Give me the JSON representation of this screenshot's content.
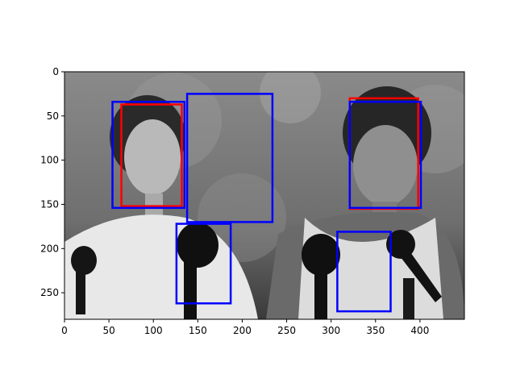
{
  "chart_data": {
    "type": "image-with-bounding-boxes",
    "title": "",
    "xlabel": "",
    "ylabel": "",
    "xlim": [
      0,
      450
    ],
    "ylim": [
      280,
      0
    ],
    "x_ticks": [
      0,
      50,
      100,
      150,
      200,
      250,
      300,
      350,
      400
    ],
    "y_ticks": [
      0,
      50,
      100,
      150,
      200,
      250
    ],
    "grid": false,
    "legend": "none",
    "image": {
      "description": "grayscale photo of two women at a press conference with microphones",
      "width": 450,
      "height": 280
    },
    "boxes": [
      {
        "color": "#ff0000",
        "x0": 64,
        "y0": 37,
        "x1": 132,
        "y1": 152
      },
      {
        "color": "#ff0000",
        "x0": 321,
        "y0": 30,
        "x1": 398,
        "y1": 155
      },
      {
        "color": "#0000ff",
        "x0": 54,
        "y0": 34,
        "x1": 135,
        "y1": 154
      },
      {
        "color": "#0000ff",
        "x0": 138,
        "y0": 25,
        "x1": 234,
        "y1": 170
      },
      {
        "color": "#0000ff",
        "x0": 126,
        "y0": 172,
        "x1": 187,
        "y1": 262
      },
      {
        "color": "#0000ff",
        "x0": 321,
        "y0": 34,
        "x1": 401,
        "y1": 154
      },
      {
        "color": "#0000ff",
        "x0": 307,
        "y0": 181,
        "x1": 367,
        "y1": 271
      }
    ]
  }
}
